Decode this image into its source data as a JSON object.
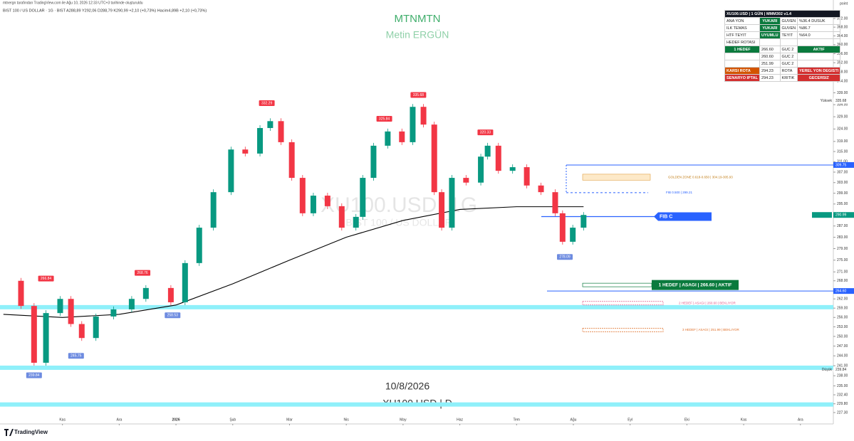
{
  "header": {
    "attribution": "mtnergn tarafından TradingView.com ile Ağu 10, 2026 12:33 UTC+3 tarihinde oluşturuldu",
    "symbol_line": "BIST 100 / US DOLLAR · 1G · BIST  A288,89  Y292,06  D288,79  K290,99  +2,10 (+0,73%)  Hacim4,89B  +2,10 (+0,73%)"
  },
  "watermark": {
    "title": "MTNMTN",
    "author": "Metin ERGÜN",
    "symbol": "XU100.USD, 1G",
    "description": "BIST 100 / US DOLLAR"
  },
  "table": {
    "title": "XU100.USD | 1 GÜN | MMM302 v1.4",
    "rows": [
      [
        "ANA YON",
        "YUKARI",
        "GUVEN",
        "%36.4 DUSUK"
      ],
      [
        "ILK TEMAS",
        "YUKARI",
        "GUVEN",
        "%86.7"
      ],
      [
        "HTF TEYIT",
        "UYUMLU",
        "TEYIT",
        "%64.0"
      ],
      [
        "HEDEF ROTASI",
        null,
        null,
        null
      ],
      [
        "1 HEDEF",
        "266.60",
        "GUC 2",
        "AKTIF"
      ],
      [
        null,
        "260.60",
        "GUC 2",
        null
      ],
      [
        null,
        "251.99",
        "GUC 2",
        null
      ],
      [
        "KARSI ROTA",
        "294.23",
        "ROTA",
        "YEREL YON DEGISTI"
      ],
      [
        "SENARYO IPTAL",
        "294.23",
        "KRITIK",
        "GECERSIZ"
      ]
    ]
  },
  "chart_data": {
    "type": "candlestick",
    "log": true,
    "axis_unit": "point",
    "xlim": [
      -1.1,
      13.58
    ],
    "xticks": [
      {
        "value": 0,
        "label": "Kas"
      },
      {
        "value": 1,
        "label": "Ara"
      },
      {
        "value": 2,
        "label": "2026"
      },
      {
        "value": 3,
        "label": "Şub"
      },
      {
        "value": 4,
        "label": "Mar"
      },
      {
        "value": 5,
        "label": "Nis"
      },
      {
        "value": 6,
        "label": "May"
      },
      {
        "value": 7,
        "label": "Haz"
      },
      {
        "value": 8,
        "label": "Tem"
      },
      {
        "value": 9,
        "label": "Ağu"
      },
      {
        "value": 10,
        "label": "Eyl"
      },
      {
        "value": 11,
        "label": "Eki"
      },
      {
        "value": 12,
        "label": "Kas"
      },
      {
        "value": 13,
        "label": "Ara"
      }
    ],
    "ylim": [
      227.3,
      372
    ],
    "yticks": [
      {
        "value": 372,
        "label": "372.00"
      },
      {
        "value": 368,
        "label": "368.00"
      },
      {
        "value": 364,
        "label": "364.00"
      },
      {
        "value": 360,
        "label": "360.00"
      },
      {
        "value": 356,
        "label": "356.00"
      },
      {
        "value": 352,
        "label": "352.00"
      },
      {
        "value": 348,
        "label": "348.00"
      },
      {
        "value": 344,
        "label": "344.00"
      },
      {
        "value": 339,
        "label": "339.00"
      },
      {
        "value": 334,
        "label": "334.00"
      },
      {
        "value": 329,
        "label": "329.00"
      },
      {
        "value": 324,
        "label": "324.00"
      },
      {
        "value": 319,
        "label": "319.00"
      },
      {
        "value": 315,
        "label": "315.00"
      },
      {
        "value": 311,
        "label": "311.00"
      },
      {
        "value": 307,
        "label": "307.00"
      },
      {
        "value": 303,
        "label": "303.00"
      },
      {
        "value": 299,
        "label": "299.00"
      },
      {
        "value": 295,
        "label": "295.00"
      },
      {
        "value": 291,
        "label": "291.00"
      },
      {
        "value": 287,
        "label": "287.00"
      },
      {
        "value": 283,
        "label": "283.00"
      },
      {
        "value": 279,
        "label": "279.00"
      },
      {
        "value": 275,
        "label": "275.00"
      },
      {
        "value": 271,
        "label": "271.00"
      },
      {
        "value": 268,
        "label": "268.00"
      },
      {
        "value": 264,
        "label": "264.00"
      },
      {
        "value": 262,
        "label": "262.00"
      },
      {
        "value": 259,
        "label": "259.00"
      },
      {
        "value": 256,
        "label": "256.00"
      },
      {
        "value": 253,
        "label": "253.00"
      },
      {
        "value": 250,
        "label": "250.00"
      },
      {
        "value": 247,
        "label": "247.00"
      },
      {
        "value": 244,
        "label": "244.00"
      },
      {
        "value": 241,
        "label": "241.00"
      },
      {
        "value": 238,
        "label": "238.00"
      },
      {
        "value": 235,
        "label": "235.00"
      },
      {
        "value": 232.4,
        "label": "232.40"
      },
      {
        "value": 229.8,
        "label": "229.80"
      },
      {
        "value": 227.3,
        "label": "227.30"
      }
    ],
    "series": [
      {
        "color_up": "#089981",
        "color_down": "#f23645",
        "x": [
          -1.04,
          -0.73,
          -0.5,
          -0.29,
          -0.04,
          0.15,
          0.34,
          0.59,
          0.9,
          1.22,
          1.47,
          1.91,
          2.16,
          2.41,
          2.66,
          2.97,
          3.22,
          3.48,
          3.66,
          3.85,
          4.04,
          4.23,
          4.42,
          4.67,
          4.92,
          5.17,
          5.29,
          5.48,
          5.73,
          5.98,
          6.17,
          6.36,
          6.55,
          6.68,
          6.86,
          7.11,
          7.37,
          7.49,
          7.68,
          7.93,
          8.18,
          8.43,
          8.68,
          8.81,
          8.99,
          9.18
        ],
        "values": [
          268,
          259.7,
          241.9,
          257.4,
          262,
          253.9,
          249.5,
          256.3,
          258.6,
          262,
          265.6,
          260.9,
          274,
          286.4,
          299.4,
          315.8,
          314.2,
          324.4,
          327.2,
          318.7,
          304.8,
          291.6,
          298.1,
          294.2,
          286.4,
          290.3,
          304.8,
          317.3,
          323,
          318.7,
          333.1,
          325.8,
          299.4,
          286.4,
          304.8,
          303,
          313,
          317.3,
          307.5,
          308.9,
          301.9,
          299.4,
          291.6,
          281.4,
          286.4,
          290.99
        ]
      }
    ],
    "ma": {
      "color": "#000000",
      "x": [
        -1.04,
        0,
        1,
        2,
        3,
        4,
        5,
        6,
        7,
        8,
        9.18
      ],
      "values": [
        257,
        256,
        257,
        260,
        267,
        275,
        283,
        289,
        293,
        294,
        294
      ]
    },
    "high_labels": [
      {
        "x": -0.29,
        "value": 266.84
      },
      {
        "x": 1.41,
        "value": 268.76
      },
      {
        "x": 3.6,
        "value": 332.29
      },
      {
        "x": 5.67,
        "value": 325.84
      },
      {
        "x": 6.27,
        "value": 335.68
      },
      {
        "x": 7.45,
        "value": 320.33
      }
    ],
    "low_labels": [
      {
        "x": -0.5,
        "value": 239.84
      },
      {
        "x": 0.24,
        "value": 245.75
      },
      {
        "x": 1.94,
        "value": 258.53
      },
      {
        "x": 8.85,
        "value": 278.09
      }
    ],
    "bands": [
      {
        "value": 259.3
      },
      {
        "value": 240.4
      },
      {
        "value": 229.6
      }
    ],
    "band_color": "#8ff0fa",
    "levels": [
      {
        "value": 309.75,
        "label": "309.75",
        "color": "#2962ff"
      },
      {
        "value": 264.6,
        "label": "264.60",
        "color": "#2962ff"
      }
    ],
    "price_label": {
      "value": 290.99,
      "label": "290.99",
      "color": "#089981"
    },
    "extremes": [
      {
        "name": "Yüksek",
        "value": 335.68,
        "label": "335.68"
      },
      {
        "name": "Düşük",
        "value": 239.84,
        "label": "239.84"
      }
    ],
    "golden_zone": {
      "low": 304.19,
      "high": 305.93,
      "label": "GOLDEN ZONE 0.618-0.650 | 304.19-305.93"
    },
    "fib": {
      "value": 299.21,
      "label": "FIB 0.500 | 299.21"
    },
    "fib_tag": {
      "value": 290.4,
      "label": "FIB C"
    },
    "targets": [
      {
        "value": 266.6,
        "label": "1 HEDEF | ASAGI | 266.60 | AKTIF",
        "color": "#0a7a3d"
      },
      {
        "value": 260.6,
        "label": "2 HEDEF | ASAGI | 260.60 | BEKLIYOR",
        "color": "#e05a8a"
      },
      {
        "value": 251.99,
        "label": "3 HEDEF | ASAGI | 251.99 | BEKLIYOR",
        "color": "#e0702a"
      }
    ]
  },
  "footer": {
    "date": "10/8/2026",
    "ticker": "XU100.USD | D",
    "logo": "TradingView"
  }
}
